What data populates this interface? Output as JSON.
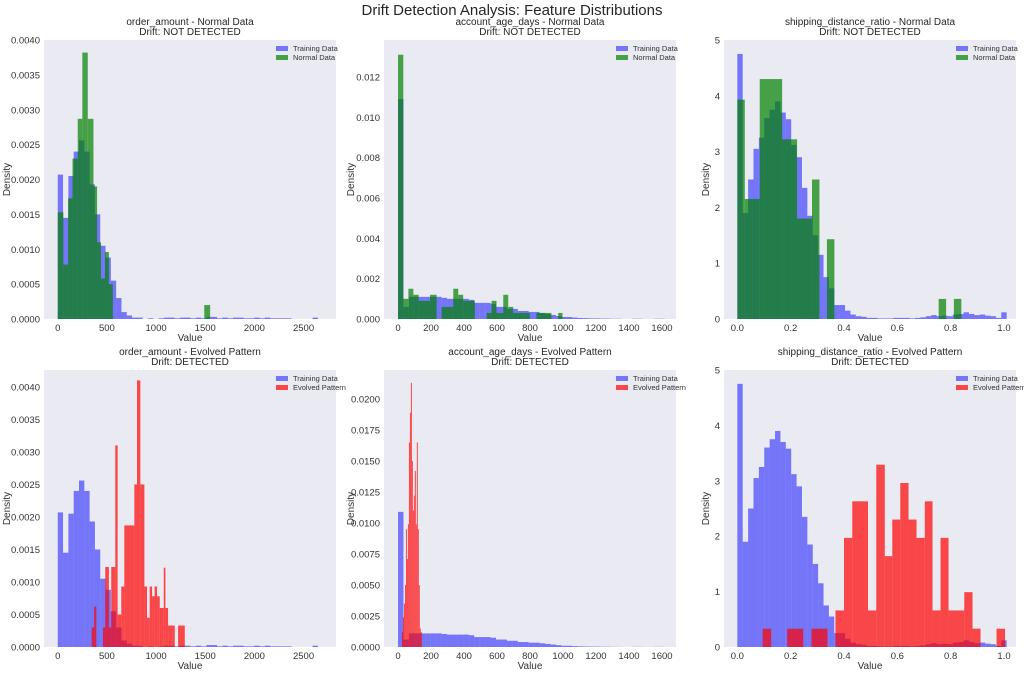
{
  "chart_data": {
    "title": "Drift Detection Analysis: Feature Distributions",
    "colors": {
      "training": "#0000ff",
      "normal": "#008000",
      "evolved": "#ff0000",
      "background": "#eaeaf2"
    },
    "panels": [
      {
        "type": "bar",
        "title": "order_amount - Normal Data",
        "subtitle": "Drift: NOT DETECTED",
        "xlabel": "Value",
        "ylabel": "Density",
        "xlim": [
          -140,
          2830
        ],
        "ylim": [
          0,
          0.004
        ],
        "xticks": [
          0,
          500,
          1000,
          1500,
          2000,
          2500
        ],
        "yticks": [
          "0.0000",
          "0.0005",
          "0.0010",
          "0.0015",
          "0.0020",
          "0.0025",
          "0.0030",
          "0.0035",
          "0.0040"
        ],
        "legend": "top-right",
        "series": [
          {
            "name": "Training Data",
            "color_key": "training",
            "alpha": 0.5,
            "bin_start": 0,
            "bin_width": 54,
            "values": [
              0.00207,
              0.00145,
              0.00205,
              0.0024,
              0.00256,
              0.0024,
              0.00193,
              0.0015,
              0.00105,
              0.00088,
              0.00055,
              0.0003,
              0.0001,
              5e-05,
              2e-05,
              2e-05,
              0,
              1e-05,
              0,
              1e-05,
              2e-05,
              2e-05,
              1e-05,
              2e-05,
              2e-05,
              1e-05,
              2e-05,
              1e-05,
              3e-05,
              3e-05,
              1e-05,
              2e-05,
              1e-05,
              2e-05,
              2e-05,
              1e-05,
              1e-05,
              2e-05,
              1e-05,
              2e-05,
              1e-05,
              1e-05,
              1e-05,
              1e-05,
              0,
              0,
              0,
              0,
              2e-05,
              0
            ]
          },
          {
            "name": "Normal Data",
            "color_key": "normal",
            "alpha": 0.7,
            "bins": [
              [
                0,
                57,
                0.00153
              ],
              [
                57,
                105,
                0.00078
              ],
              [
                105,
                150,
                0.00173
              ],
              [
                150,
                203,
                0.0023
              ],
              [
                203,
                250,
                0.00287
              ],
              [
                250,
                305,
                0.00382
              ],
              [
                305,
                363,
                0.00287
              ],
              [
                363,
                400,
                0.0019
              ],
              [
                400,
                440,
                0.0011
              ],
              [
                440,
                480,
                0.00058
              ],
              [
                480,
                520,
                0.00096
              ],
              [
                520,
                560,
                0.0005
              ],
              [
                1490,
                1550,
                0.0002
              ]
            ]
          }
        ]
      },
      {
        "type": "bar",
        "title": "account_age_days - Normal Data",
        "subtitle": "Drift: NOT DETECTED",
        "xlabel": "Value",
        "ylabel": "Density",
        "xlim": [
          -85,
          1685
        ],
        "ylim": [
          0,
          0.01383
        ],
        "xticks": [
          0,
          200,
          400,
          600,
          800,
          1000,
          1200,
          1400,
          1600
        ],
        "yticks": [
          "0.000",
          "0.002",
          "0.004",
          "0.006",
          "0.008",
          "0.010",
          "0.012"
        ],
        "legend": "top-right",
        "series": [
          {
            "name": "Training Data",
            "color_key": "training",
            "alpha": 0.5,
            "bin_start": 0,
            "bin_width": 33,
            "values": [
              0.0109,
              0.0006,
              0.0011,
              0.0011,
              0.0011,
              0.0011,
              0.0011,
              0.0011,
              0.00105,
              0.001,
              0.001,
              0.001,
              0.001,
              0.00095,
              0.0008,
              0.0008,
              0.0008,
              0.00075,
              0.0006,
              0.0006,
              0.0005,
              0.0005,
              0.0004,
              0.0004,
              0.00035,
              0.00035,
              0.0003,
              0.00025,
              0.0002,
              0.00015,
              0.0001,
              0.0001,
              7e-05,
              5e-05,
              4e-05,
              3e-05,
              3e-05,
              2e-05,
              2e-05,
              1e-05,
              1e-05,
              0,
              0,
              1e-05,
              1e-05,
              0,
              0,
              1e-05,
              1e-05,
              0
            ]
          },
          {
            "name": "Normal Data",
            "color_key": "normal",
            "alpha": 0.7,
            "bins": [
              [
                0,
                32,
                0.0131
              ],
              [
                32,
                63,
                0.001
              ],
              [
                63,
                93,
                0.0015
              ],
              [
                93,
                125,
                0.0012
              ],
              [
                125,
                194,
                0.0009
              ],
              [
                194,
                234,
                0.0012
              ],
              [
                264,
                335,
                0.0006
              ],
              [
                335,
                365,
                0.0015
              ],
              [
                365,
                395,
                0.0012
              ],
              [
                395,
                466,
                0.0009
              ],
              [
                537,
                567,
                0.0003
              ],
              [
                567,
                597,
                0.0009
              ],
              [
                597,
                638,
                0.0003
              ],
              [
                638,
                668,
                0.0012
              ],
              [
                668,
                698,
                0.0006
              ],
              [
                698,
                769,
                0.0003
              ],
              [
                769,
                799,
                0.0003
              ],
              [
                839,
                930,
                0.0003
              ],
              [
                971,
                997,
                0.0003
              ]
            ]
          }
        ]
      },
      {
        "type": "bar",
        "title": "shipping_distance_ratio - Normal Data",
        "subtitle": "Drift: NOT DETECTED",
        "xlabel": "Value",
        "ylabel": "Density",
        "xlim": [
          -0.05,
          1.045
        ],
        "ylim": [
          0,
          5
        ],
        "xticks": [
          "0.0",
          "0.2",
          "0.4",
          "0.6",
          "0.8",
          "1.0"
        ],
        "yticks": [
          "0",
          "1",
          "2",
          "3",
          "4",
          "5"
        ],
        "legend": "top-right",
        "series": [
          {
            "name": "Training Data",
            "color_key": "training",
            "alpha": 0.5,
            "bin_start": 0,
            "bin_width": 0.0202,
            "values": [
              4.75,
              1.9,
              2.5,
              3.05,
              3.25,
              3.6,
              3.75,
              3.9,
              3.7,
              3.58,
              3.12,
              2.9,
              2.35,
              1.85,
              1.5,
              1.15,
              0.75,
              0.55,
              0.25,
              0.25,
              0.15,
              0.08,
              0.05,
              0.04,
              0.02,
              0.02,
              0.01,
              0.01,
              0.01,
              0.02,
              0.02,
              0.02,
              0.01,
              0.02,
              0.03,
              0.05,
              0.07,
              0.05,
              0.06,
              0.05,
              0.08,
              0.09,
              0.12,
              0.09,
              0.07,
              0.08,
              0.06,
              0.05,
              0.02,
              0.12
            ]
          },
          {
            "name": "Normal Data",
            "color_key": "normal",
            "alpha": 0.7,
            "bins": [
              [
                0,
                0.028,
                3.93
              ],
              [
                0.028,
                0.056,
                2.15
              ],
              [
                0.056,
                0.084,
                2.15
              ],
              [
                0.084,
                0.168,
                4.3
              ],
              [
                0.168,
                0.224,
                3.22
              ],
              [
                0.224,
                0.28,
                1.8
              ],
              [
                0.28,
                0.308,
                2.5
              ],
              [
                0.336,
                0.364,
                1.43
              ],
              [
                0.755,
                0.783,
                0.36
              ],
              [
                0.812,
                0.84,
                0.36
              ]
            ]
          }
        ]
      },
      {
        "type": "bar",
        "title": "order_amount - Evolved Pattern",
        "subtitle": "Drift: DETECTED",
        "xlabel": "Value",
        "ylabel": "Density",
        "xlim": [
          -140,
          2830
        ],
        "ylim": [
          0,
          0.00426
        ],
        "xticks": [
          0,
          500,
          1000,
          1500,
          2000,
          2500
        ],
        "yticks": [
          "0.0000",
          "0.0005",
          "0.0010",
          "0.0015",
          "0.0020",
          "0.0025",
          "0.0030",
          "0.0035",
          "0.0040"
        ],
        "legend": "top-right",
        "series": [
          {
            "name": "Training Data",
            "color_key": "training",
            "alpha": 0.5,
            "same_as": "panel0-series0"
          },
          {
            "name": "Evolved Pattern",
            "color_key": "evolved",
            "alpha": 0.7,
            "bins": [
              [
                345,
                370,
                0.0003
              ],
              [
                370,
                392,
                0.00062
              ],
              [
                460,
                483,
                0.0003
              ],
              [
                483,
                520,
                0.00123
              ],
              [
                520,
                544,
                0.0003
              ],
              [
                544,
                585,
                0.00123
              ],
              [
                585,
                609,
                0.0031
              ],
              [
                609,
                646,
                0.0005
              ],
              [
                646,
                677,
                0.00093
              ],
              [
                677,
                779,
                0.00187
              ],
              [
                779,
                806,
                0.0025
              ],
              [
                806,
                840,
                0.0041
              ],
              [
                840,
                881,
                0.0025
              ],
              [
                881,
                908,
                0.00093
              ],
              [
                908,
                935,
                0.00045
              ],
              [
                935,
                959,
                0.00093
              ],
              [
                959,
                985,
                0.00078
              ],
              [
                985,
                1010,
                0.00093
              ],
              [
                1010,
                1037,
                0.00078
              ],
              [
                1037,
                1078,
                0.0006
              ],
              [
                1078,
                1095,
                0.00122
              ],
              [
                1095,
                1122,
                0.0006
              ],
              [
                1122,
                1163,
                0.00033
              ],
              [
                1163,
                1190,
                0.00033
              ],
              [
                1224,
                1292,
                0.00033
              ]
            ]
          }
        ]
      },
      {
        "type": "bar",
        "title": "account_age_days - Evolved Pattern",
        "subtitle": "Drift: DETECTED",
        "xlabel": "Value",
        "ylabel": "Density",
        "xlim": [
          -85,
          1685
        ],
        "ylim": [
          0,
          0.02234
        ],
        "xticks": [
          0,
          200,
          400,
          600,
          800,
          1000,
          1200,
          1400,
          1600
        ],
        "yticks": [
          "0.0000",
          "0.0025",
          "0.0050",
          "0.0075",
          "0.0100",
          "0.0125",
          "0.0150",
          "0.0175",
          "0.0200"
        ],
        "legend": "top-right",
        "series": [
          {
            "name": "Training Data",
            "color_key": "training",
            "alpha": 0.5,
            "same_as": "panel1-series0"
          },
          {
            "name": "Evolved Pattern",
            "color_key": "evolved",
            "alpha": 0.7,
            "bin_start": 24,
            "bin_width": 6,
            "values": [
              0.0012,
              0.0024,
              0.0035,
              0.005,
              0.0095,
              0.0071,
              0.0099,
              0.0165,
              0.0189,
              0.0213,
              0.015,
              0.011,
              0.0122,
              0.0142,
              0.0099,
              0.0165,
              0.0095,
              0.005,
              0.0015,
              0.0012
            ]
          }
        ]
      },
      {
        "type": "bar",
        "title": "shipping_distance_ratio - Evolved Pattern",
        "subtitle": "Drift: DETECTED",
        "xlabel": "Value",
        "ylabel": "Density",
        "xlim": [
          -0.05,
          1.045
        ],
        "ylim": [
          0,
          5
        ],
        "xticks": [
          "0.0",
          "0.2",
          "0.4",
          "0.6",
          "0.8",
          "1.0"
        ],
        "yticks": [
          "0",
          "1",
          "2",
          "3",
          "4",
          "5"
        ],
        "legend": "top-right",
        "series": [
          {
            "name": "Training Data",
            "color_key": "training",
            "alpha": 0.5,
            "same_as": "panel2-series0"
          },
          {
            "name": "Evolved Pattern",
            "color_key": "evolved",
            "alpha": 0.7,
            "bins": [
              [
                0.095,
                0.127,
                0.33
              ],
              [
                0.187,
                0.247,
                0.33
              ],
              [
                0.278,
                0.338,
                0.33
              ],
              [
                0.368,
                0.4,
                0.66
              ],
              [
                0.4,
                0.431,
                1.97
              ],
              [
                0.431,
                0.49,
                2.63
              ],
              [
                0.49,
                0.521,
                0.66
              ],
              [
                0.521,
                0.553,
                3.29
              ],
              [
                0.553,
                0.581,
                1.64
              ],
              [
                0.581,
                0.611,
                2.3
              ],
              [
                0.611,
                0.642,
                2.96
              ],
              [
                0.642,
                0.672,
                2.3
              ],
              [
                0.672,
                0.703,
                1.97
              ],
              [
                0.703,
                0.732,
                2.63
              ],
              [
                0.732,
                0.762,
                0.66
              ],
              [
                0.762,
                0.792,
                1.97
              ],
              [
                0.792,
                0.851,
                0.66
              ],
              [
                0.851,
                0.882,
                0.99
              ],
              [
                0.882,
                0.912,
                0.33
              ],
              [
                0.972,
                1.004,
                0.33
              ]
            ]
          }
        ]
      }
    ]
  }
}
